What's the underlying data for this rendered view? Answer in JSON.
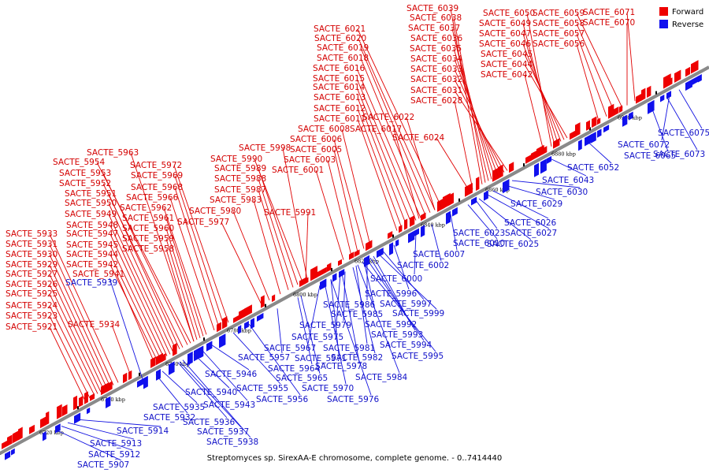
{
  "caption": "Streptomyces sp. SirexAA-E chromosome, complete genome. - 0..7414440",
  "legend": [
    {
      "label": "Forward",
      "color": "#ee0000"
    },
    {
      "label": "Reverse",
      "color": "#1010ee"
    }
  ],
  "colors": {
    "forward": "#ee0000",
    "reverse": "#1010ee",
    "axis": "#8a8a8a"
  },
  "ticks": [
    "6720 kbp",
    "6740 kbp",
    "6760 kbp",
    "6780 kbp",
    "6800 kbp",
    "6820 kbp",
    "6840 kbp",
    "6860 kbp",
    "6880 kbp",
    "6900 kbp"
  ],
  "forward_genes": [
    "SACTE_6039",
    "SACTE_6038",
    "SACTE_6037",
    "SACTE_6036",
    "SACTE_6035",
    "SACTE_6034",
    "SACTE_6033",
    "SACTE_6032",
    "SACTE_6031",
    "SACTE_6028",
    "SACTE_6050",
    "SACTE_6049",
    "SACTE_6047",
    "SACTE_6046",
    "SACTE_6045",
    "SACTE_6044",
    "SACTE_6042",
    "SACTE_6059",
    "SACTE_6058",
    "SACTE_6057",
    "SACTE_6056",
    "SACTE_6071",
    "SACTE_6070",
    "SACTE_6021",
    "SACTE_6020",
    "SACTE_6019",
    "SACTE_6018",
    "SACTE_6016",
    "SACTE_6015",
    "SACTE_6014",
    "SACTE_6013",
    "SACTE_6012",
    "SACTE_6011",
    "SACTE_6022",
    "SACTE_6008",
    "SACTE_6017",
    "SACTE_6006",
    "SACTE_6024",
    "SACTE_6005",
    "SACTE_6003",
    "SACTE_6001",
    "SACTE_5998",
    "SACTE_5990",
    "SACTE_5989",
    "SACTE_5988",
    "SACTE_5987",
    "SACTE_5983",
    "SACTE_5980",
    "SACTE_5991",
    "SACTE_5977",
    "SACTE_5963",
    "SACTE_5954",
    "SACTE_5972",
    "SACTE_5953",
    "SACTE_5969",
    "SACTE_5952",
    "SACTE_5968",
    "SACTE_5951",
    "SACTE_5966",
    "SACTE_5950",
    "SACTE_5962",
    "SACTE_5949",
    "SACTE_5961",
    "SACTE_5948",
    "SACTE_5960",
    "SACTE_5947",
    "SACTE_5959",
    "SACTE_5945",
    "SACTE_5958",
    "SACTE_5944",
    "SACTE_5942",
    "SACTE_5941",
    "SACTE_5933",
    "SACTE_5931",
    "SACTE_5930",
    "SACTE_5929",
    "SACTE_5927",
    "SACTE_5926",
    "SACTE_5925",
    "SACTE_5924",
    "SACTE_5923",
    "SACTE_5921",
    "SACTE_5934"
  ],
  "reverse_genes": [
    "SACTE_6075",
    "SACTE_6072",
    "SACTE_6073",
    "SACTE_6065",
    "SACTE_6052",
    "SACTE_6043",
    "SACTE_6030",
    "SACTE_6029",
    "SACTE_6026",
    "SACTE_6023",
    "SACTE_6027",
    "SACTE_6010",
    "SACTE_6025",
    "SACTE_6007",
    "SACTE_6002",
    "SACTE_6000",
    "SACTE_5996",
    "SACTE_5986",
    "SACTE_5997",
    "SACTE_5985",
    "SACTE_5999",
    "SACTE_5979",
    "SACTE_5992",
    "SACTE_5975",
    "SACTE_5993",
    "SACTE_5967",
    "SACTE_5981",
    "SACTE_5994",
    "SACTE_5957",
    "SACTE_5971",
    "SACTE_5982",
    "SACTE_5995",
    "SACTE_5964",
    "SACTE_5978",
    "SACTE_5965",
    "SACTE_5984",
    "SACTE_5970",
    "SACTE_5976",
    "SACTE_5939",
    "SACTE_5946",
    "SACTE_5955",
    "SACTE_5940",
    "SACTE_5956",
    "SACTE_5943",
    "SACTE_5935",
    "SACTE_5932",
    "SACTE_5936",
    "SACTE_5937",
    "SACTE_5938",
    "SACTE_5914",
    "SACTE_5913",
    "SACTE_5912",
    "SACTE_5907"
  ]
}
